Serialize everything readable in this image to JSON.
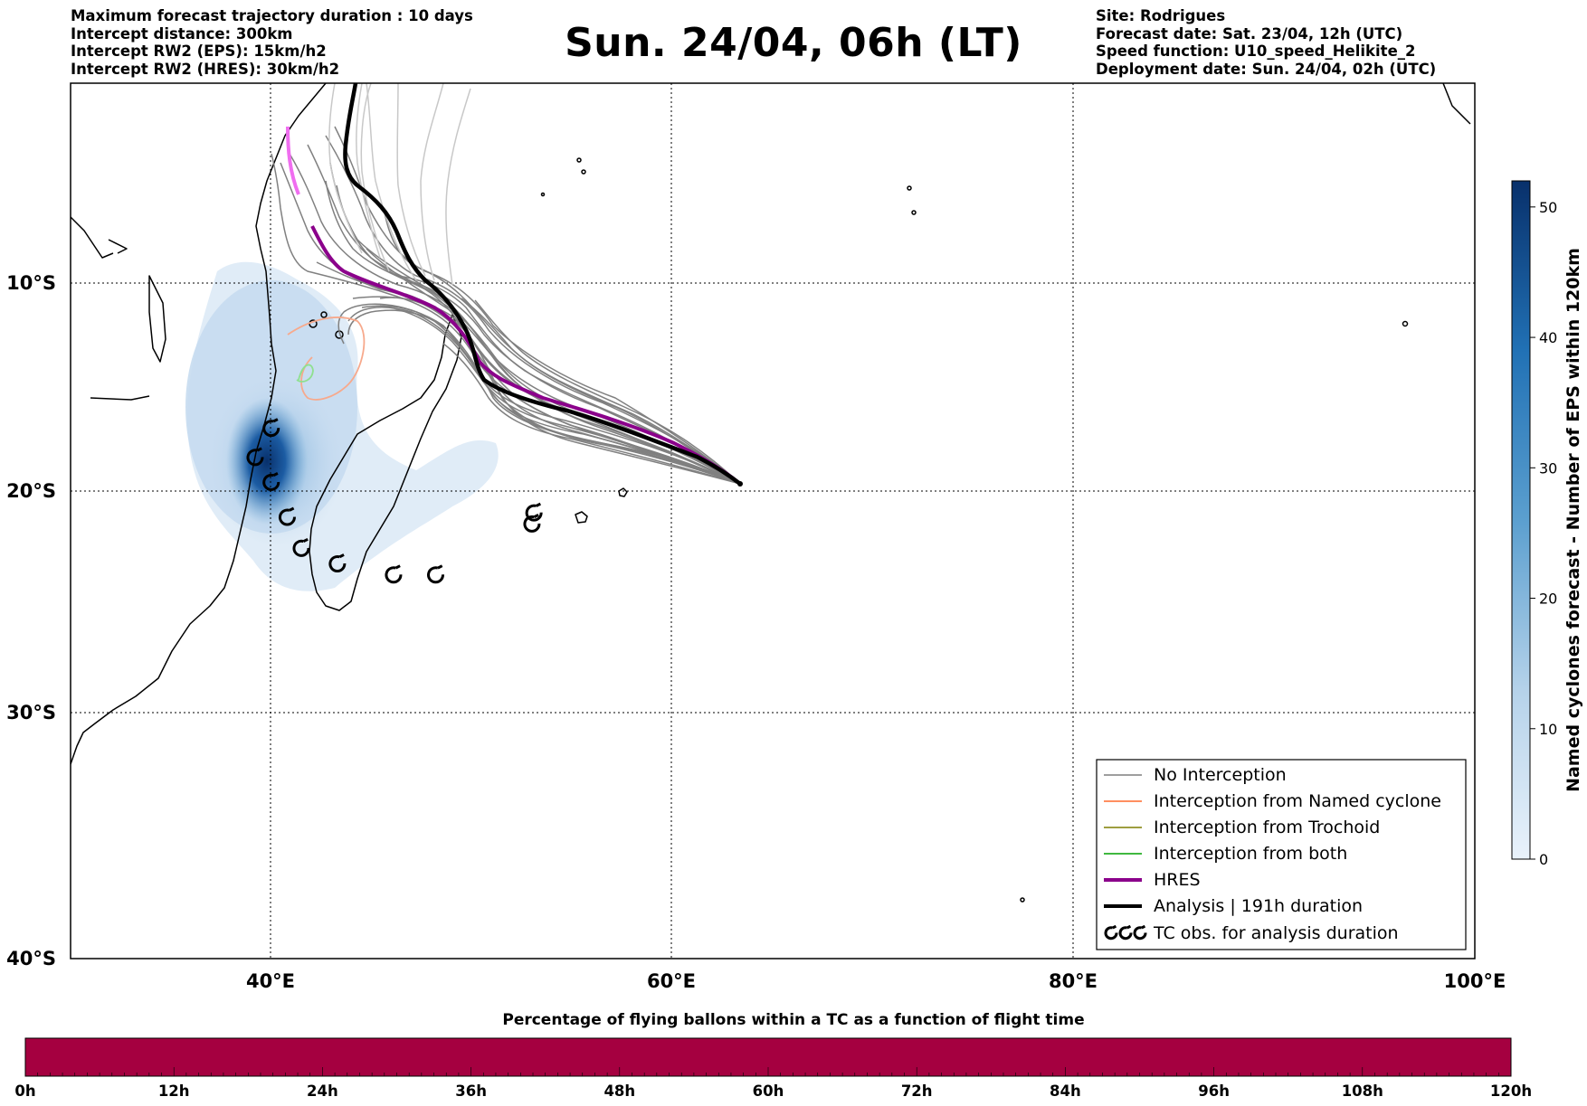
{
  "header_left": [
    "Maximum forecast trajectory duration : 10 days",
    "Intercept distance: 300km",
    "Intercept RW2 (EPS):  15km/h2",
    "Intercept RW2 (HRES): 30km/h2"
  ],
  "title": "Sun. 24/04, 06h (LT)",
  "header_right": [
    "Site: Rodrigues",
    "Forecast date: Sat. 23/04, 12h (UTC)",
    "Speed function: U10_speed_Helikite_2",
    "Deployment date: Sun. 24/04, 02h (UTC)"
  ],
  "map": {
    "lon_range": [
      30,
      100
    ],
    "lat_range": [
      -40,
      1
    ],
    "lon_ticks": [
      40,
      60,
      80,
      100
    ],
    "lon_tick_labels": [
      "40°E",
      "60°E",
      "80°E",
      "100°E"
    ],
    "lat_ticks": [
      -10,
      -20,
      -30,
      -40
    ],
    "lat_tick_labels": [
      "10°S",
      "20°S",
      "30°S",
      "40°S"
    ],
    "grid": "dotted",
    "release_site": {
      "lon": 63.4,
      "lat": -19.7
    }
  },
  "colorbar": {
    "label": "Named cyclones forecast - Number of EPS within 120km",
    "ticks": [
      "0",
      "10",
      "20",
      "30",
      "40",
      "50"
    ],
    "min": 0,
    "max": 52,
    "low_color": "#e3eef9",
    "high_color": "#08306b"
  },
  "legend": {
    "placement": "lower-right",
    "items": [
      {
        "label": "No Interception",
        "color": "#7f7f7f"
      },
      {
        "label": "Interception from Named cyclone",
        "color": "#ff6a2b"
      },
      {
        "label": "Interception from Trochoid",
        "color": "#7f7f00"
      },
      {
        "label": "Interception from both",
        "color": "#00a000"
      },
      {
        "label": "HRES",
        "color": "#8b008b"
      },
      {
        "label": "Analysis | 191h duration",
        "color": "#000000"
      },
      {
        "label": "TC obs. for analysis duration",
        "color": "#000000",
        "marker": "cyclone-symbol"
      }
    ]
  },
  "tc_obs": [
    {
      "lon": 40.0,
      "lat": -17.0
    },
    {
      "lon": 39.2,
      "lat": -18.4
    },
    {
      "lon": 40.0,
      "lat": -19.6
    },
    {
      "lon": 40.8,
      "lat": -21.2
    },
    {
      "lon": 41.5,
      "lat": -22.6
    },
    {
      "lon": 43.3,
      "lat": -23.3
    },
    {
      "lon": 46.1,
      "lat": -23.8
    },
    {
      "lon": 48.2,
      "lat": -23.8
    },
    {
      "lon": 53.1,
      "lat": -21.0
    },
    {
      "lon": 53.0,
      "lat": -21.5
    }
  ],
  "time_bar": {
    "title": "Percentage of flying ballons within a TC as a function of flight time",
    "labels": [
      "0h",
      "12h",
      "24h",
      "36h",
      "48h",
      "60h",
      "72h",
      "84h",
      "96h",
      "108h",
      "120h"
    ],
    "color": "#a50040"
  }
}
